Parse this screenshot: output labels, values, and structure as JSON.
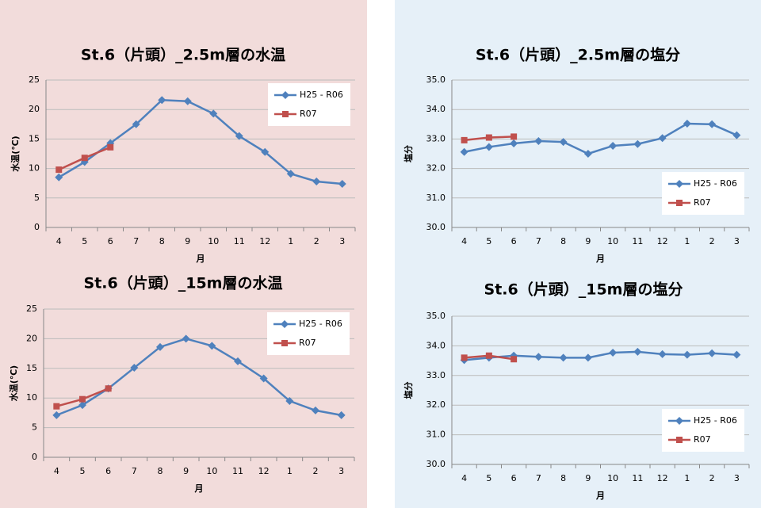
{
  "chart_data": [
    {
      "type": "line",
      "title": "St.6（片頭）_2.5m層の水温",
      "ylabel": "水温(℃)",
      "xlabel": "月",
      "categories": [
        "4",
        "5",
        "6",
        "7",
        "8",
        "9",
        "10",
        "11",
        "12",
        "1",
        "2",
        "3"
      ],
      "series": [
        {
          "name": "H25 - R06",
          "color": "#4f81bd",
          "marker": "diamond",
          "values": [
            8.5,
            11.1,
            14.3,
            17.5,
            21.6,
            21.4,
            19.3,
            15.5,
            12.8,
            9.1,
            7.8,
            7.4
          ]
        },
        {
          "name": "R07",
          "color": "#c0504d",
          "marker": "square",
          "values": [
            9.8,
            11.8,
            13.6,
            null,
            null,
            null,
            null,
            null,
            null,
            null,
            null,
            null
          ]
        }
      ],
      "ylim": [
        0,
        25
      ],
      "yticks": [
        0,
        5,
        10,
        15,
        20,
        25
      ],
      "grid": true,
      "legend": "upper right"
    },
    {
      "type": "line",
      "title": "St.6（片頭）_15m層の水温",
      "ylabel": "水温(℃)",
      "xlabel": "月",
      "categories": [
        "4",
        "5",
        "6",
        "7",
        "8",
        "9",
        "10",
        "11",
        "12",
        "1",
        "2",
        "3"
      ],
      "series": [
        {
          "name": "H25 - R06",
          "color": "#4f81bd",
          "marker": "diamond",
          "values": [
            7.1,
            8.8,
            11.6,
            15.1,
            18.6,
            20.0,
            18.8,
            16.2,
            13.3,
            9.5,
            7.9,
            7.1
          ]
        },
        {
          "name": "R07",
          "color": "#c0504d",
          "marker": "square",
          "values": [
            8.6,
            9.8,
            11.6,
            null,
            null,
            null,
            null,
            null,
            null,
            null,
            null,
            null
          ]
        }
      ],
      "ylim": [
        0,
        25
      ],
      "yticks": [
        0,
        5,
        10,
        15,
        20,
        25
      ],
      "grid": true,
      "legend": "upper right"
    },
    {
      "type": "line",
      "title": "St.6（片頭）_2.5m層の塩分",
      "ylabel": "塩分",
      "xlabel": "月",
      "categories": [
        "4",
        "5",
        "6",
        "7",
        "8",
        "9",
        "10",
        "11",
        "12",
        "1",
        "2",
        "3"
      ],
      "series": [
        {
          "name": "H25 - R06",
          "color": "#4f81bd",
          "marker": "diamond",
          "values": [
            32.56,
            32.73,
            32.85,
            32.93,
            32.9,
            32.5,
            32.77,
            32.83,
            33.03,
            33.52,
            33.5,
            33.13
          ]
        },
        {
          "name": "R07",
          "color": "#c0504d",
          "marker": "square",
          "values": [
            32.96,
            33.05,
            33.08,
            null,
            null,
            null,
            null,
            null,
            null,
            null,
            null,
            null
          ]
        }
      ],
      "ylim": [
        30,
        35
      ],
      "yticks": [
        {
          "value": 30,
          "label": "30.0"
        },
        {
          "value": 31,
          "label": "31.0"
        },
        {
          "value": 32,
          "label": "32.0"
        },
        {
          "value": 33,
          "label": "33.0"
        },
        {
          "value": 34,
          "label": "34.0"
        },
        {
          "value": 35,
          "label": "35.0"
        }
      ],
      "grid": true,
      "legend": "lower right"
    },
    {
      "type": "line",
      "title": "St.6（片頭）_15m層の塩分",
      "ylabel": "塩分",
      "xlabel": "月",
      "categories": [
        "4",
        "5",
        "6",
        "7",
        "8",
        "9",
        "10",
        "11",
        "12",
        "1",
        "2",
        "3"
      ],
      "series": [
        {
          "name": "H25 - R06",
          "color": "#4f81bd",
          "marker": "diamond",
          "values": [
            33.52,
            33.6,
            33.67,
            33.63,
            33.6,
            33.6,
            33.77,
            33.8,
            33.72,
            33.7,
            33.75,
            33.7
          ]
        },
        {
          "name": "R07",
          "color": "#c0504d",
          "marker": "square",
          "values": [
            33.6,
            33.67,
            33.55,
            null,
            null,
            null,
            null,
            null,
            null,
            null,
            null,
            null
          ]
        }
      ],
      "ylim": [
        30,
        35
      ],
      "yticks": [
        {
          "value": 30,
          "label": "30.0"
        },
        {
          "value": 31,
          "label": "31.0"
        },
        {
          "value": 32,
          "label": "32.0"
        },
        {
          "value": 33,
          "label": "33.0"
        },
        {
          "value": 34,
          "label": "34.0"
        },
        {
          "value": 35,
          "label": "35.0"
        }
      ],
      "grid": true,
      "legend": "lower right"
    }
  ]
}
